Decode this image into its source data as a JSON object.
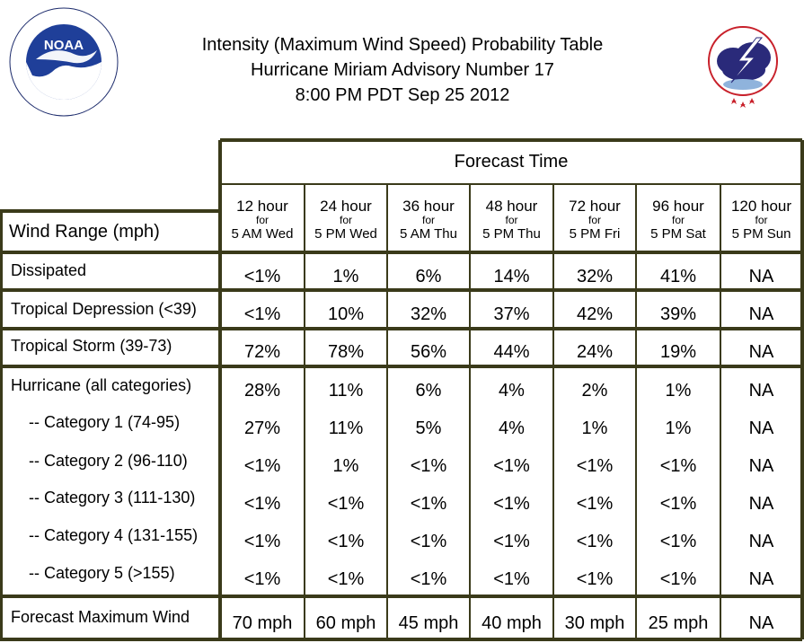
{
  "title": {
    "line1": "Intensity (Maximum Wind Speed) Probability Table",
    "line2": "Hurricane Miriam Advisory Number 17",
    "line3": "8:00 PM PDT Sep 25 2012"
  },
  "logos": {
    "left": {
      "text": "NOAA",
      "ring_text": "NATIONAL OCEANIC AND ATMOSPHERIC ADMINISTRATION · U.S. DEPARTMENT OF COMMERCE"
    },
    "right": {
      "ring_text": "NATIONAL WEATHER SERVICE"
    }
  },
  "table": {
    "group_header": "Forecast Time",
    "row_header": "Wind Range (mph)",
    "columns": [
      {
        "hours": "12 hour",
        "for": "for",
        "when": "5 AM Wed"
      },
      {
        "hours": "24 hour",
        "for": "for",
        "when": "5 PM Wed"
      },
      {
        "hours": "36 hour",
        "for": "for",
        "when": "5 AM Thu"
      },
      {
        "hours": "48 hour",
        "for": "for",
        "when": "5 PM Thu"
      },
      {
        "hours": "72 hour",
        "for": "for",
        "when": "5 PM Fri"
      },
      {
        "hours": "96 hour",
        "for": "for",
        "when": "5 PM Sat"
      },
      {
        "hours": "120 hour",
        "for": "for",
        "when": "5 PM Sun"
      }
    ],
    "rows": [
      {
        "label": "Dissipated",
        "values": [
          "<1%",
          "1%",
          "6%",
          "14%",
          "32%",
          "41%",
          "NA"
        ]
      },
      {
        "label": "Tropical Depression (<39)",
        "values": [
          "<1%",
          "10%",
          "32%",
          "37%",
          "42%",
          "39%",
          "NA"
        ]
      },
      {
        "label": "Tropical Storm (39-73)",
        "values": [
          "72%",
          "78%",
          "56%",
          "44%",
          "24%",
          "19%",
          "NA"
        ]
      },
      {
        "label": "Hurricane (all categories)",
        "values": [
          "28%",
          "11%",
          "6%",
          "4%",
          "2%",
          "1%",
          "NA"
        ]
      },
      {
        "label": "-- Category 1 (74-95)",
        "values": [
          "27%",
          "11%",
          "5%",
          "4%",
          "1%",
          "1%",
          "NA"
        ]
      },
      {
        "label": "-- Category 2 (96-110)",
        "values": [
          "<1%",
          "1%",
          "<1%",
          "<1%",
          "<1%",
          "<1%",
          "NA"
        ]
      },
      {
        "label": "-- Category 3 (111-130)",
        "values": [
          "<1%",
          "<1%",
          "<1%",
          "<1%",
          "<1%",
          "<1%",
          "NA"
        ]
      },
      {
        "label": "-- Category 4 (131-155)",
        "values": [
          "<1%",
          "<1%",
          "<1%",
          "<1%",
          "<1%",
          "<1%",
          "NA"
        ]
      },
      {
        "label": "-- Category 5 (>155)",
        "values": [
          "<1%",
          "<1%",
          "<1%",
          "<1%",
          "<1%",
          "<1%",
          "NA"
        ]
      },
      {
        "label": "Forecast Maximum Wind",
        "values": [
          "70 mph",
          "60 mph",
          "45 mph",
          "40 mph",
          "30 mph",
          "25 mph",
          "NA"
        ]
      }
    ]
  },
  "colors": {
    "border": "#3a3a1a"
  }
}
